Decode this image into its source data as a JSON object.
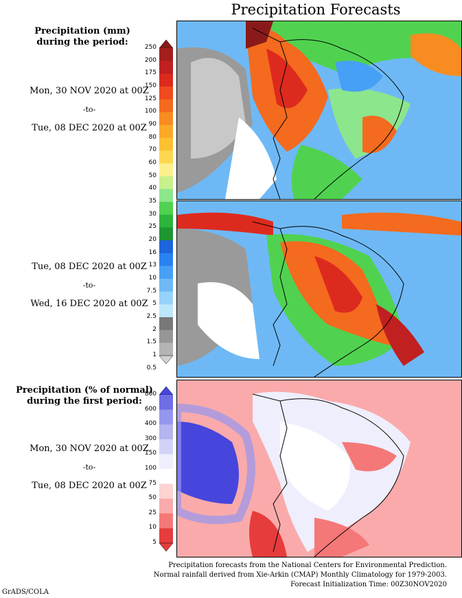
{
  "title": "Precipitation Forecasts",
  "panels": {
    "mm_legend_title": [
      "Precipitation (mm)",
      "during the period:"
    ],
    "period1": [
      "Mon, 30 NOV 2020 at 00Z",
      "-to-",
      "Tue, 08 DEC 2020 at 00Z"
    ],
    "period2": [
      "Tue, 08 DEC 2020 at 00Z",
      "-to-",
      "Wed, 16 DEC 2020 at 00Z"
    ],
    "pct_legend_title": [
      "Precipitation (% of normal)",
      "during the first period:"
    ],
    "period3": [
      "Mon, 30 NOV 2020 at 00Z",
      "-to-",
      "Tue, 08 DEC 2020 at 00Z"
    ]
  },
  "mm_scale": {
    "labels": [
      "250",
      "200",
      "175",
      "150",
      "125",
      "100",
      "90",
      "80",
      "70",
      "60",
      "50",
      "40",
      "35",
      "30",
      "25",
      "20",
      "16",
      "13",
      "10",
      "7.5",
      "5",
      "2.5",
      "2",
      "1.5",
      "1",
      "0.5"
    ],
    "colors": [
      "#8a1a1a",
      "#a51e1e",
      "#c02020",
      "#dd2a1e",
      "#f04a1e",
      "#f46a1e",
      "#f88c20",
      "#fba828",
      "#fcc030",
      "#fcd850",
      "#fcf08c",
      "#c8f08c",
      "#8ce68c",
      "#50d250",
      "#2cb43c",
      "#1e9632",
      "#1e64dc",
      "#2882f0",
      "#46a0f5",
      "#6eb9f5",
      "#96d2fa",
      "#bce6fa",
      "#787878",
      "#969696",
      "#b4b4b4",
      "#d2d2d2"
    ]
  },
  "pct_scale": {
    "labels": [
      "800",
      "600",
      "400",
      "300",
      "150",
      "100",
      "75",
      "50",
      "25",
      "10",
      "5"
    ],
    "colors": [
      "#4646dc",
      "#6e6ee6",
      "#9696ee",
      "#b4b4f0",
      "#d2d2f8",
      "#eeeefc",
      "#ffffff",
      "#fcd2d2",
      "#faaaaa",
      "#f57878",
      "#e63c3c",
      "#e63c3c"
    ]
  },
  "footer": [
    "Precipitation forecasts from the National Centers for Environmental Prediction.",
    "Normal rainfall derived from Xie-Arkin (CMAP) Monthly Climatology for 1979-2003.",
    "Forecast Initialization Time: 00Z30NOV2020"
  ],
  "credit": "GrADS/COLA"
}
